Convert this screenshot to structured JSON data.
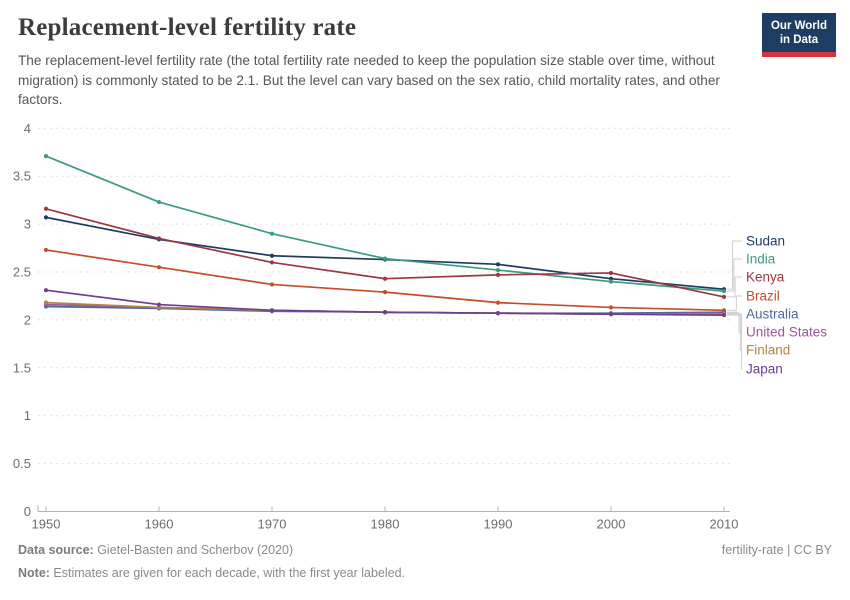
{
  "header": {
    "title": "Replacement-level fertility rate",
    "subtitle": "The replacement-level fertility rate (the total fertility rate needed to keep the population size stable over time, without migration) is commonly stated to be 2.1. But the level can vary based on the sex ratio, child mortality rates, and other factors.",
    "logo": {
      "line1": "Our World",
      "line2": "in Data",
      "bg_color": "#1d3d63",
      "accent_color": "#d7333f"
    }
  },
  "chart_data": {
    "type": "line",
    "title": "Replacement-level fertility rate",
    "xlabel": "",
    "ylabel": "",
    "x": [
      1950,
      1960,
      1970,
      1980,
      1990,
      2000,
      2010
    ],
    "x_tick_labels": [
      "1950",
      "1960",
      "1970",
      "1980",
      "1990",
      "2000",
      "2010"
    ],
    "ylim": [
      0,
      4
    ],
    "y_ticks": [
      0,
      0.5,
      1,
      1.5,
      2,
      2.5,
      3,
      3.5,
      4
    ],
    "grid": "horizontal-dashed",
    "legend_position": "right-inline-labels",
    "series": [
      {
        "name": "Sudan",
        "color": "#1d3d63",
        "values": [
          3.07,
          2.84,
          2.67,
          2.63,
          2.58,
          2.43,
          2.32
        ]
      },
      {
        "name": "India",
        "color": "#3b9c7c",
        "values": [
          3.71,
          3.23,
          2.9,
          2.64,
          2.52,
          2.4,
          2.3
        ]
      },
      {
        "name": "Kenya",
        "color": "#993841",
        "values": [
          3.16,
          2.85,
          2.6,
          2.43,
          2.47,
          2.49,
          2.24
        ]
      },
      {
        "name": "Brazil",
        "color": "#c44e28",
        "values": [
          2.73,
          2.55,
          2.37,
          2.29,
          2.18,
          2.13,
          2.1
        ]
      },
      {
        "name": "Australia",
        "color": "#4c6a9c",
        "values": [
          2.14,
          2.12,
          2.09,
          2.08,
          2.07,
          2.07,
          2.08
        ]
      },
      {
        "name": "United States",
        "color": "#a2559c",
        "values": [
          2.16,
          2.13,
          2.1,
          2.08,
          2.07,
          2.06,
          2.07
        ]
      },
      {
        "name": "Finland",
        "color": "#b08447",
        "values": [
          2.18,
          2.13,
          2.1,
          2.08,
          2.07,
          2.06,
          2.06
        ]
      },
      {
        "name": "Japan",
        "color": "#6d3e91",
        "values": [
          2.31,
          2.16,
          2.1,
          2.08,
          2.07,
          2.06,
          2.05
        ]
      }
    ],
    "axis_color": "#b3b3b3",
    "grid_color": "#e0e0e0",
    "tick_label_color": "#6e6e6e",
    "connector_color": "#cfcfcf"
  },
  "footer": {
    "datasource_label": "Data source:",
    "datasource_value": " Gietel-Basten and Scherbov (2020)",
    "note_label": "Note:",
    "note_value": " Estimates are given for each decade, with the first year labeled.",
    "license": "fertility-rate | CC BY"
  }
}
